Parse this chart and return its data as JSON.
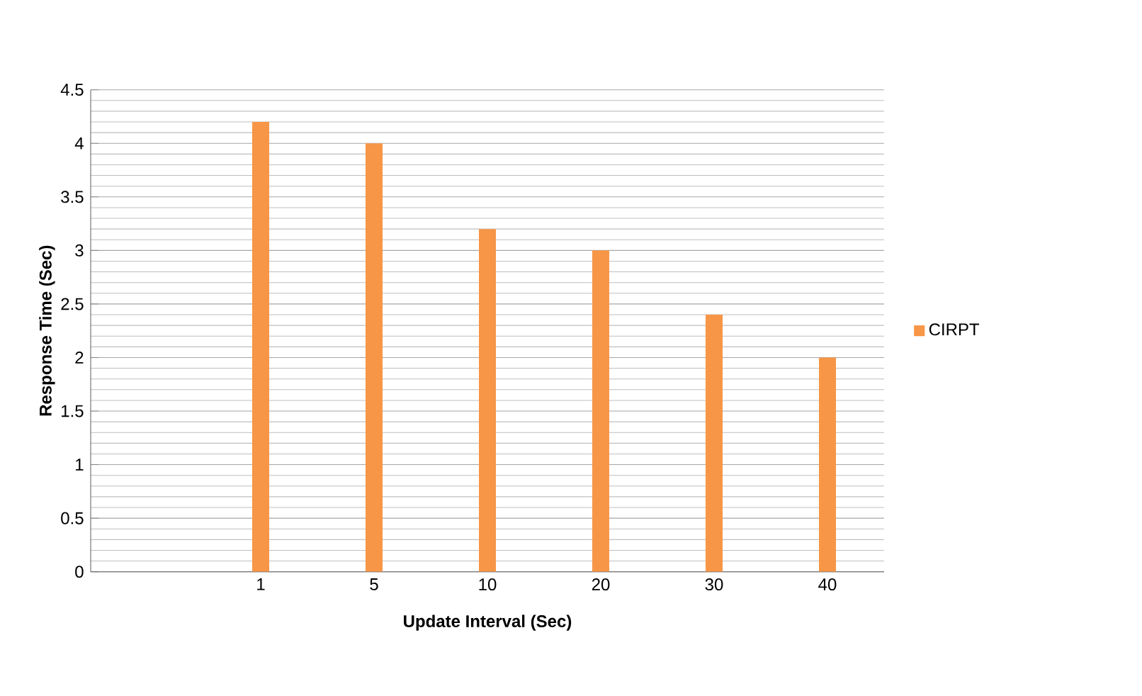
{
  "chart_data": {
    "type": "bar",
    "xlabel": "Update Interval (Sec)",
    "ylabel": "Response Time (Sec)",
    "categories": [
      null,
      "1",
      "5",
      "10",
      "20",
      "30",
      "40"
    ],
    "series": [
      {
        "name": "CIRPT",
        "color": "#f79646",
        "values": [
          null,
          4.2,
          4.0,
          3.2,
          3.0,
          2.4,
          2.0
        ]
      }
    ],
    "ylim": [
      0,
      4.5
    ],
    "yticks": [
      0,
      0.5,
      1,
      1.5,
      2,
      2.5,
      3,
      3.5,
      4,
      4.5
    ],
    "grid": "y",
    "legend": "right"
  }
}
